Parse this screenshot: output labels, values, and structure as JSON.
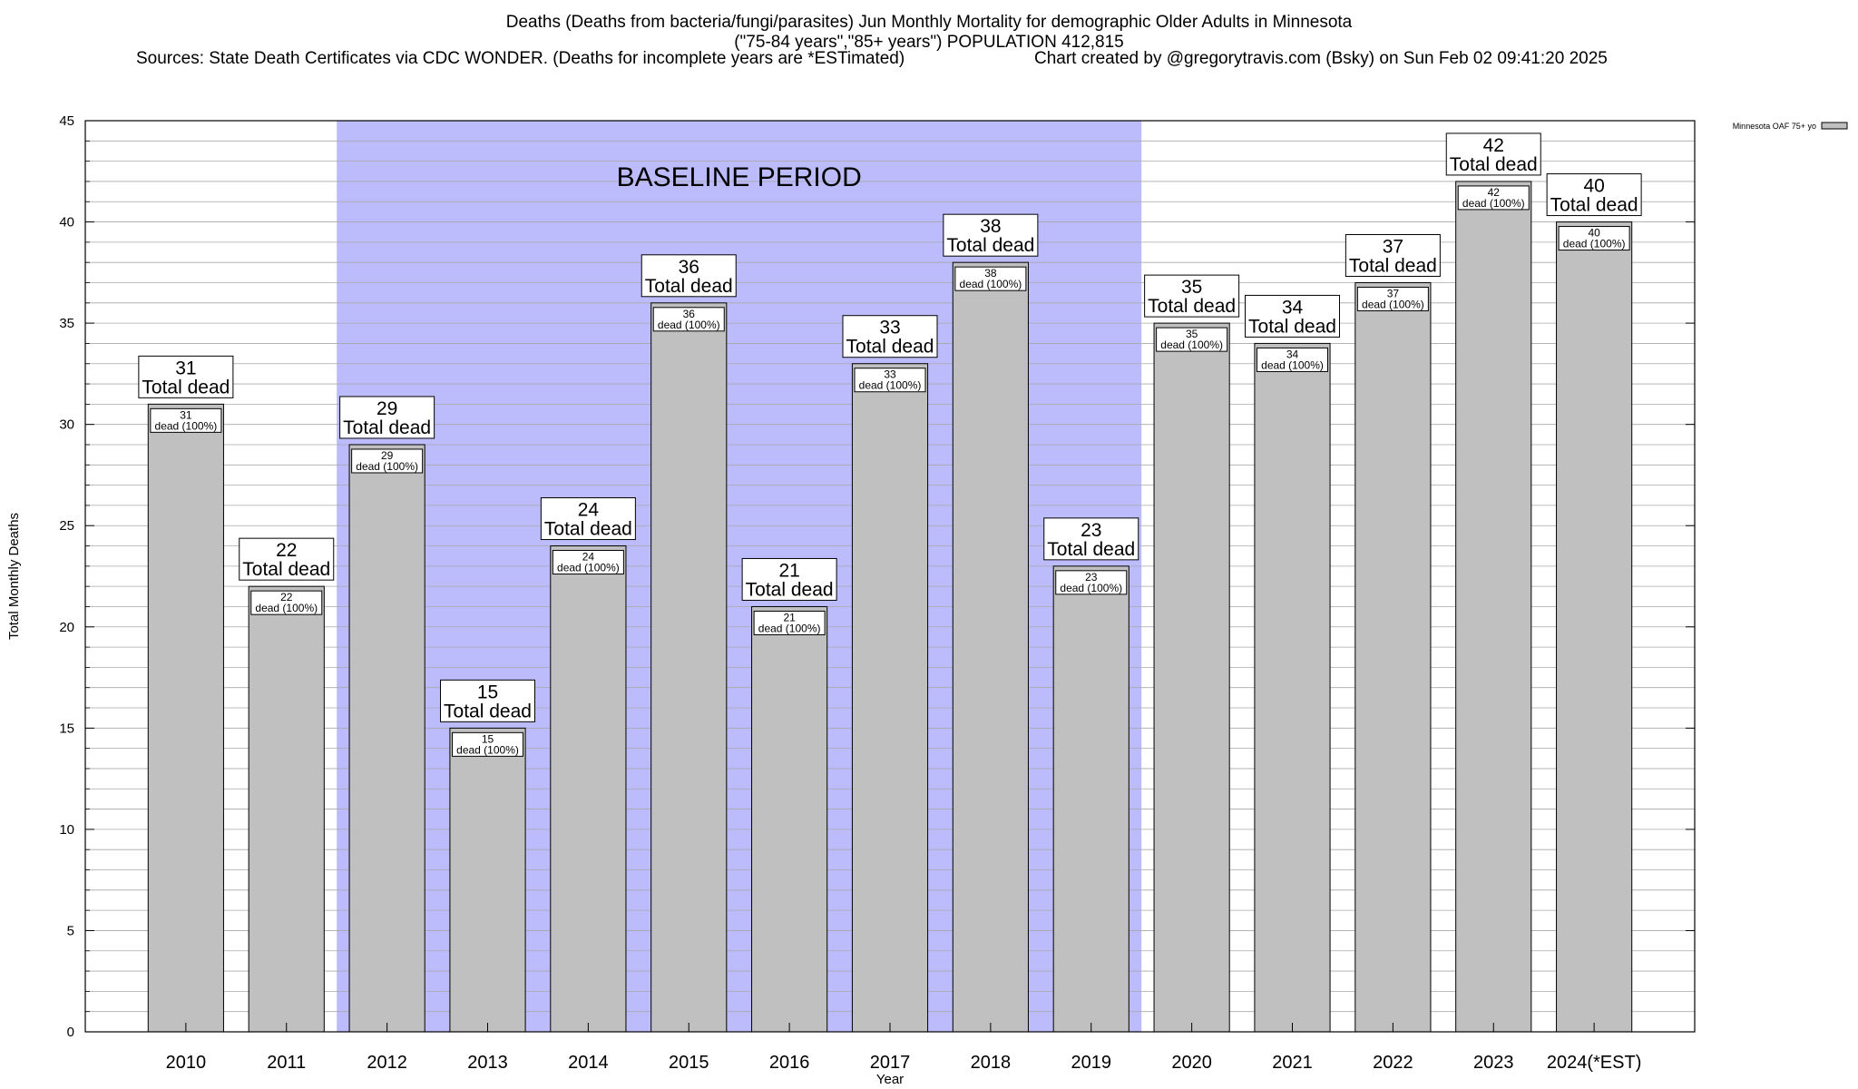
{
  "chart_data": {
    "type": "bar",
    "title_line1": "Deaths (Deaths from bacteria/fungi/parasites) Jun Monthly Mortality for demographic Older Adults in Minnesota",
    "title_line2": "(\"75-84 years\",\"85+ years\") POPULATION 412,815",
    "sources": "Sources: State Death Certificates via CDC WONDER. (Deaths for incomplete years are *ESTimated)",
    "credit": "Chart created by @gregorytravis.com (Bsky) on Sun Feb 02 09:41:20 2025",
    "xlabel": "Year",
    "ylabel": "Total Monthly Deaths",
    "ylim": [
      0,
      45
    ],
    "ytick_labels": [
      "0",
      "5",
      "10",
      "15",
      "20",
      "25",
      "30",
      "35",
      "40",
      "45"
    ],
    "minor_grid_step": 1,
    "grid": true,
    "categories": [
      "2010",
      "2011",
      "2012",
      "2013",
      "2014",
      "2015",
      "2016",
      "2017",
      "2018",
      "2019",
      "2020",
      "2021",
      "2022",
      "2023",
      "2024(*EST)"
    ],
    "series": [
      {
        "name": "Minnesota OAF 75+ yo",
        "color": "#c0c0c0",
        "values": [
          31,
          22,
          29,
          15,
          24,
          36,
          21,
          33,
          38,
          23,
          35,
          34,
          37,
          42,
          40
        ]
      }
    ],
    "big_label_suffix": "Total dead",
    "small_label_suffix": "dead (100%)",
    "baseline": {
      "label": "BASELINE PERIOD",
      "start": "2012",
      "end": "2019",
      "color": "#bcbcfc"
    },
    "legend_position": "top-right"
  }
}
